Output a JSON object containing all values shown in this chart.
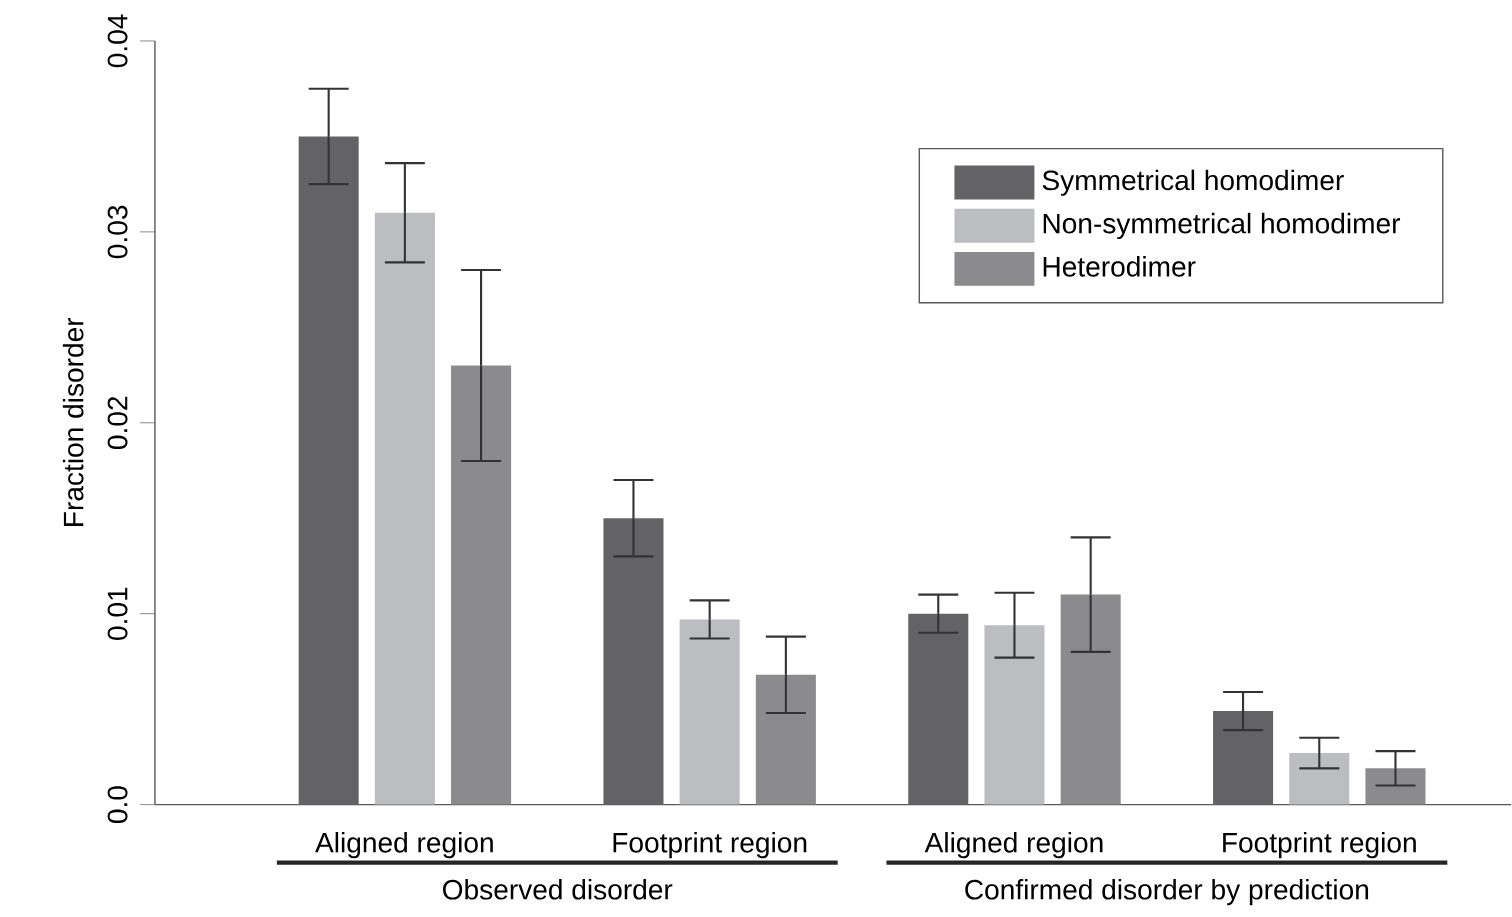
{
  "chart_data": {
    "type": "bar",
    "ylabel": "Fraction disorder",
    "categories": [
      "Aligned region",
      "Footprint region",
      "Aligned region",
      "Footprint region"
    ],
    "series": [
      {
        "name": "Symmetrical homodimer",
        "color": "#636366",
        "values": [
          0.035,
          0.015,
          0.01,
          0.0049
        ],
        "errors": [
          0.0025,
          0.002,
          0.001,
          0.001
        ]
      },
      {
        "name": "Non-symmetrical homodimer",
        "color": "#bcbdc1",
        "values": [
          0.031,
          0.0097,
          0.0094,
          0.0027
        ],
        "errors": [
          0.0026,
          0.001,
          0.0017,
          0.0008
        ]
      },
      {
        "name": "Heterodimer",
        "color": "#8b8b8e",
        "values": [
          0.023,
          0.0068,
          0.011,
          0.0019
        ],
        "errors": [
          0.005,
          0.002,
          0.003,
          0.0009
        ]
      }
    ],
    "ylim": [
      0,
      0.04
    ],
    "yticks": [
      {
        "value": 0,
        "label": "0.0"
      },
      0.01,
      0.02,
      0.03,
      0.04
    ],
    "legend": "top right",
    "annotations": [
      "Observed disorder",
      "Confirmed disorder by prediction"
    ]
  }
}
